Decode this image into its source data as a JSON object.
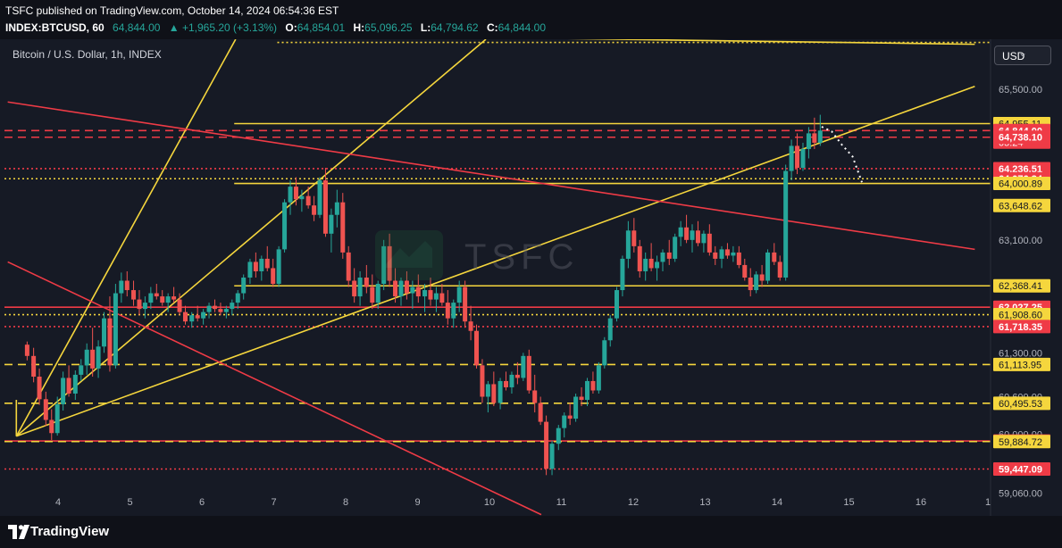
{
  "header": {
    "published": "TSFC published on TradingView.com, October 14, 2024 06:54:36 EST",
    "symbol": "INDEX:BTCUSD, 60",
    "price": "64,844.00",
    "change": "▲ +1,965.20 (+3.13%)",
    "open_label": "O:",
    "open": "64,854.01",
    "high_label": "H:",
    "high": "65,096.25",
    "low_label": "L:",
    "low": "64,794.62",
    "close_label": "C:",
    "close": "64,844.00"
  },
  "legend": "Bitcoin / U.S. Dollar, 1h, INDEX",
  "currency_button": "USD",
  "watermark_text": "TSFC",
  "footer": {
    "brand": "TradingView",
    "logo_icon": "tradingview-logo-icon"
  },
  "colors": {
    "up": "#26a69a",
    "down": "#ef5350",
    "support": "#f5d63d",
    "resistance": "#ef3b46",
    "path": "#ffffff"
  },
  "chart_data": {
    "type": "candlestick",
    "title": "Bitcoin / U.S. Dollar, 1h, INDEX",
    "ylim": [
      58700,
      66300
    ],
    "x_ticks": [
      "4",
      "5",
      "6",
      "7",
      "8",
      "9",
      "10",
      "11",
      "12",
      "13",
      "14",
      "15",
      "16",
      "1"
    ],
    "y_ticks": [
      "65,500.00",
      "63,100.00",
      "61,300.00",
      "60,600.00",
      "60,000.00",
      "59,060.00"
    ],
    "y_tick_values": [
      65500,
      63100,
      61300,
      60600,
      60000,
      59060
    ],
    "price_labels": [
      {
        "text": "64,955.11",
        "value": 64955.11,
        "style": "yellow"
      },
      {
        "text": "64,844.00",
        "value": 64844,
        "style": "red",
        "sub": "05:24"
      },
      {
        "text": "64,738.10",
        "value": 64738.1,
        "style": "red"
      },
      {
        "text": "64,236.51",
        "value": 64236.51,
        "style": "red"
      },
      {
        "text": "64,076.34",
        "value": 64076.34,
        "style": "red"
      },
      {
        "text": "64,000.89",
        "value": 64000.89,
        "style": "yellow"
      },
      {
        "text": "63,648.62",
        "value": 63648.62,
        "style": "yellow"
      },
      {
        "text": "62,368.41",
        "value": 62368.41,
        "style": "yellow"
      },
      {
        "text": "62,027.25",
        "value": 62027.25,
        "style": "red"
      },
      {
        "text": "61,908.60",
        "value": 61908.6,
        "style": "yellow"
      },
      {
        "text": "61,718.35",
        "value": 61718.35,
        "style": "red"
      },
      {
        "text": "61,113.95",
        "value": 61113.95,
        "style": "yellow"
      },
      {
        "text": "60,495.53",
        "value": 60495.53,
        "style": "yellow"
      },
      {
        "text": "59,893.98",
        "value": 59893.98,
        "style": "red"
      },
      {
        "text": "59,884.72",
        "value": 59884.72,
        "style": "yellow"
      },
      {
        "text": "59,447.09",
        "value": 59447.09,
        "style": "red"
      }
    ],
    "horizontal_levels": [
      {
        "value": 66250,
        "color": "yellow",
        "dash": "dotted"
      },
      {
        "value": 64955.11,
        "color": "yellow",
        "dash": "solid"
      },
      {
        "value": 64844,
        "color": "red",
        "dash": "dashed"
      },
      {
        "value": 64738.1,
        "color": "red",
        "dash": "dashed"
      },
      {
        "value": 64236.51,
        "color": "red",
        "dash": "dotted"
      },
      {
        "value": 64076.34,
        "color": "yellow",
        "dash": "dotted"
      },
      {
        "value": 64000.89,
        "color": "yellow",
        "dash": "solid"
      },
      {
        "value": 62368.41,
        "color": "yellow",
        "dash": "solid"
      },
      {
        "value": 62027.25,
        "color": "red",
        "dash": "solid"
      },
      {
        "value": 61908.6,
        "color": "yellow",
        "dash": "dotted"
      },
      {
        "value": 61718.35,
        "color": "red",
        "dash": "dotted"
      },
      {
        "value": 61113.95,
        "color": "yellow",
        "dash": "dashed"
      },
      {
        "value": 60495.53,
        "color": "yellow",
        "dash": "dashed"
      },
      {
        "value": 59893.98,
        "color": "red",
        "dash": "solid"
      },
      {
        "value": 59884.72,
        "color": "yellow",
        "dash": "dashed"
      },
      {
        "value": 59447.09,
        "color": "red",
        "dash": "dotted"
      }
    ],
    "trend_lines": [
      {
        "from": [
          3.42,
          59970
        ],
        "to": [
          6.47,
          66300
        ],
        "color": "yellow"
      },
      {
        "from": [
          3.42,
          59970
        ],
        "to": [
          9.95,
          66300
        ],
        "color": "yellow"
      },
      {
        "from": [
          3.42,
          59970
        ],
        "to": [
          16.75,
          65550
        ],
        "color": "yellow"
      },
      {
        "from": [
          3.42,
          60550
        ],
        "to": [
          3.42,
          59970
        ],
        "color": "yellow"
      },
      {
        "from": [
          10.5,
          66320
        ],
        "to": [
          16.75,
          66220
        ],
        "color": "yellow"
      },
      {
        "from": [
          3.3,
          65300
        ],
        "to": [
          16.75,
          62950
        ],
        "color": "red"
      },
      {
        "from": [
          3.3,
          62750
        ],
        "to": [
          10.72,
          58720
        ],
        "color": "red"
      }
    ],
    "projection_path": [
      [
        14.62,
        64905
      ],
      [
        14.76,
        64830
      ],
      [
        14.9,
        64620
      ],
      [
        15.05,
        64430
      ],
      [
        15.18,
        64020
      ]
    ],
    "ohlc": [
      [
        3.57,
        61430,
        61480,
        61180,
        61250
      ],
      [
        3.66,
        61250,
        61380,
        60830,
        60920
      ],
      [
        3.74,
        60920,
        61050,
        60470,
        60560
      ],
      [
        3.83,
        60560,
        60680,
        60130,
        60230
      ],
      [
        3.91,
        60230,
        60400,
        59910,
        60020
      ],
      [
        3.99,
        60020,
        60600,
        59980,
        60480
      ],
      [
        4.07,
        60480,
        61000,
        60380,
        60900
      ],
      [
        4.15,
        60900,
        61100,
        60600,
        60650
      ],
      [
        4.24,
        60650,
        61020,
        60550,
        60950
      ],
      [
        4.32,
        60950,
        61200,
        60850,
        61100
      ],
      [
        4.4,
        61100,
        61450,
        60950,
        61350
      ],
      [
        4.48,
        61350,
        61700,
        60920,
        61050
      ],
      [
        4.56,
        61050,
        61500,
        60900,
        61400
      ],
      [
        4.64,
        61400,
        61950,
        61300,
        61850
      ],
      [
        4.72,
        61850,
        62200,
        61000,
        61100
      ],
      [
        4.8,
        61100,
        62400,
        61050,
        62250
      ],
      [
        4.88,
        62250,
        62580,
        62100,
        62450
      ],
      [
        4.96,
        62450,
        62600,
        62200,
        62300
      ],
      [
        5.05,
        62300,
        62450,
        62050,
        62150
      ],
      [
        5.13,
        62150,
        62300,
        61900,
        62000
      ],
      [
        5.21,
        62000,
        62200,
        61850,
        62100
      ],
      [
        5.29,
        62100,
        62350,
        62000,
        62250
      ],
      [
        5.37,
        62250,
        62400,
        62150,
        62200
      ],
      [
        5.45,
        62200,
        62300,
        62050,
        62100
      ],
      [
        5.53,
        62100,
        62250,
        61950,
        62200
      ],
      [
        5.61,
        62200,
        62350,
        62100,
        62150
      ],
      [
        5.69,
        62150,
        62250,
        61900,
        61950
      ],
      [
        5.77,
        61950,
        62050,
        61750,
        61800
      ],
      [
        5.86,
        61800,
        61950,
        61700,
        61900
      ],
      [
        5.94,
        61900,
        62050,
        61800,
        61850
      ],
      [
        6.02,
        61850,
        62000,
        61750,
        61950
      ],
      [
        6.1,
        61950,
        62100,
        61850,
        62050
      ],
      [
        6.18,
        62050,
        62150,
        61950,
        62000
      ],
      [
        6.26,
        62000,
        62100,
        61900,
        61950
      ],
      [
        6.34,
        61950,
        62050,
        61850,
        62000
      ],
      [
        6.42,
        62000,
        62150,
        61900,
        62100
      ],
      [
        6.5,
        62100,
        62300,
        62000,
        62250
      ],
      [
        6.58,
        62250,
        62550,
        62150,
        62500
      ],
      [
        6.67,
        62500,
        62800,
        62400,
        62750
      ],
      [
        6.75,
        62750,
        62900,
        62500,
        62600
      ],
      [
        6.83,
        62600,
        62850,
        62450,
        62800
      ],
      [
        6.91,
        62800,
        63000,
        62600,
        62650
      ],
      [
        6.99,
        62650,
        62800,
        62350,
        62400
      ],
      [
        7.07,
        62400,
        63000,
        62350,
        62950
      ],
      [
        7.15,
        62950,
        63750,
        62900,
        63700
      ],
      [
        7.23,
        63700,
        64050,
        63500,
        63950
      ],
      [
        7.31,
        63950,
        64100,
        63650,
        63750
      ],
      [
        7.39,
        63750,
        63900,
        63550,
        63800
      ],
      [
        7.48,
        63800,
        63950,
        63600,
        63650
      ],
      [
        7.56,
        63650,
        63800,
        63400,
        63500
      ],
      [
        7.64,
        63500,
        64100,
        63450,
        64050
      ],
      [
        7.72,
        64050,
        64250,
        63150,
        63200
      ],
      [
        7.8,
        63200,
        63600,
        62900,
        63500
      ],
      [
        7.88,
        63500,
        63900,
        63300,
        63700
      ],
      [
        7.96,
        63700,
        63850,
        62800,
        62900
      ],
      [
        8.04,
        62900,
        63000,
        62350,
        62450
      ],
      [
        8.12,
        62450,
        62650,
        62100,
        62200
      ],
      [
        8.2,
        62200,
        62600,
        62050,
        62500
      ],
      [
        8.29,
        62500,
        62700,
        62250,
        62350
      ],
      [
        8.37,
        62350,
        62550,
        62000,
        62100
      ],
      [
        8.45,
        62100,
        62450,
        62000,
        62400
      ],
      [
        8.53,
        62400,
        63100,
        62300,
        63000
      ],
      [
        8.61,
        63000,
        63200,
        62350,
        62450
      ],
      [
        8.69,
        62450,
        62650,
        62100,
        62200
      ],
      [
        8.77,
        62200,
        62500,
        62050,
        62450
      ],
      [
        8.85,
        62450,
        62600,
        62150,
        62250
      ],
      [
        8.93,
        62250,
        62450,
        62000,
        62350
      ],
      [
        9.01,
        62350,
        62550,
        62100,
        62200
      ],
      [
        9.1,
        62200,
        62400,
        61950,
        62300
      ],
      [
        9.18,
        62300,
        62500,
        62050,
        62150
      ],
      [
        9.26,
        62150,
        62350,
        61950,
        62250
      ],
      [
        9.34,
        62250,
        62400,
        62050,
        62100
      ],
      [
        9.42,
        62100,
        62300,
        61750,
        61850
      ],
      [
        9.5,
        61850,
        62150,
        61700,
        62100
      ],
      [
        9.58,
        62100,
        62450,
        61950,
        62350
      ],
      [
        9.66,
        62350,
        62450,
        61700,
        61800
      ],
      [
        9.74,
        61800,
        62050,
        61500,
        61650
      ],
      [
        9.82,
        61650,
        61750,
        61050,
        61100
      ],
      [
        9.9,
        61100,
        61200,
        60500,
        60600
      ],
      [
        9.98,
        60600,
        60850,
        60350,
        60800
      ],
      [
        10.06,
        60800,
        61000,
        60450,
        60500
      ],
      [
        10.15,
        60500,
        60900,
        60400,
        60850
      ],
      [
        10.23,
        60850,
        61000,
        60700,
        60750
      ],
      [
        10.31,
        60750,
        61000,
        60650,
        60950
      ],
      [
        10.39,
        60950,
        61150,
        60800,
        60900
      ],
      [
        10.47,
        60900,
        61300,
        60850,
        61250
      ],
      [
        10.55,
        61250,
        61350,
        60650,
        60700
      ],
      [
        10.63,
        60700,
        60950,
        60350,
        60500
      ],
      [
        10.71,
        60500,
        60600,
        60150,
        60200
      ],
      [
        10.79,
        60200,
        60300,
        59350,
        59450
      ],
      [
        10.87,
        59450,
        59900,
        59350,
        59850
      ],
      [
        10.96,
        59850,
        60150,
        59750,
        60100
      ],
      [
        11.04,
        60100,
        60350,
        59950,
        60300
      ],
      [
        11.12,
        60300,
        60500,
        60150,
        60250
      ],
      [
        11.2,
        60250,
        60650,
        60200,
        60600
      ],
      [
        11.28,
        60600,
        60750,
        60450,
        60550
      ],
      [
        11.36,
        60550,
        60900,
        60450,
        60850
      ],
      [
        11.44,
        60850,
        61000,
        60650,
        60700
      ],
      [
        11.52,
        60700,
        61150,
        60650,
        61100
      ],
      [
        11.6,
        61100,
        61550,
        61050,
        61500
      ],
      [
        11.68,
        61500,
        61900,
        61400,
        61850
      ],
      [
        11.77,
        61850,
        62350,
        61800,
        62300
      ],
      [
        11.85,
        62300,
        62850,
        62200,
        62800
      ],
      [
        11.93,
        62800,
        63400,
        62650,
        63250
      ],
      [
        12.01,
        63250,
        63450,
        62900,
        63000
      ],
      [
        12.09,
        63000,
        63100,
        62500,
        62600
      ],
      [
        12.17,
        62600,
        62900,
        62450,
        62800
      ],
      [
        12.25,
        62800,
        63050,
        62600,
        62650
      ],
      [
        12.33,
        62650,
        62850,
        62450,
        62750
      ],
      [
        12.41,
        62750,
        62950,
        62600,
        62900
      ],
      [
        12.5,
        62900,
        63100,
        62700,
        62800
      ],
      [
        12.58,
        62800,
        63200,
        62750,
        63150
      ],
      [
        12.66,
        63150,
        63400,
        63000,
        63300
      ],
      [
        12.74,
        63300,
        63500,
        63050,
        63100
      ],
      [
        12.82,
        63100,
        63350,
        62900,
        63250
      ],
      [
        12.9,
        63250,
        63400,
        63000,
        63050
      ],
      [
        12.98,
        63050,
        63250,
        62900,
        63200
      ],
      [
        13.06,
        63200,
        63350,
        62850,
        62900
      ],
      [
        13.14,
        62900,
        63000,
        62700,
        62800
      ],
      [
        13.23,
        62800,
        63000,
        62650,
        62950
      ],
      [
        13.31,
        62950,
        63050,
        62800,
        62850
      ],
      [
        13.39,
        62850,
        63000,
        62750,
        62900
      ],
      [
        13.47,
        62900,
        63000,
        62650,
        62700
      ],
      [
        13.55,
        62700,
        62800,
        62450,
        62500
      ],
      [
        13.63,
        62500,
        62650,
        62200,
        62300
      ],
      [
        13.71,
        62300,
        62600,
        62250,
        62550
      ],
      [
        13.79,
        62550,
        62700,
        62350,
        62450
      ],
      [
        13.87,
        62450,
        62950,
        62400,
        62900
      ],
      [
        13.96,
        62900,
        63050,
        62700,
        62750
      ],
      [
        14.04,
        62750,
        62850,
        62450,
        62500
      ],
      [
        14.12,
        62500,
        64300,
        62450,
        64200
      ],
      [
        14.2,
        64200,
        64700,
        64050,
        64600
      ],
      [
        14.28,
        64600,
        64800,
        64150,
        64250
      ],
      [
        14.36,
        64250,
        64650,
        64200,
        64550
      ],
      [
        14.44,
        64550,
        64900,
        64400,
        64800
      ],
      [
        14.52,
        64800,
        65050,
        64550,
        64650
      ],
      [
        14.6,
        64650,
        65096,
        64600,
        64844
      ]
    ]
  }
}
